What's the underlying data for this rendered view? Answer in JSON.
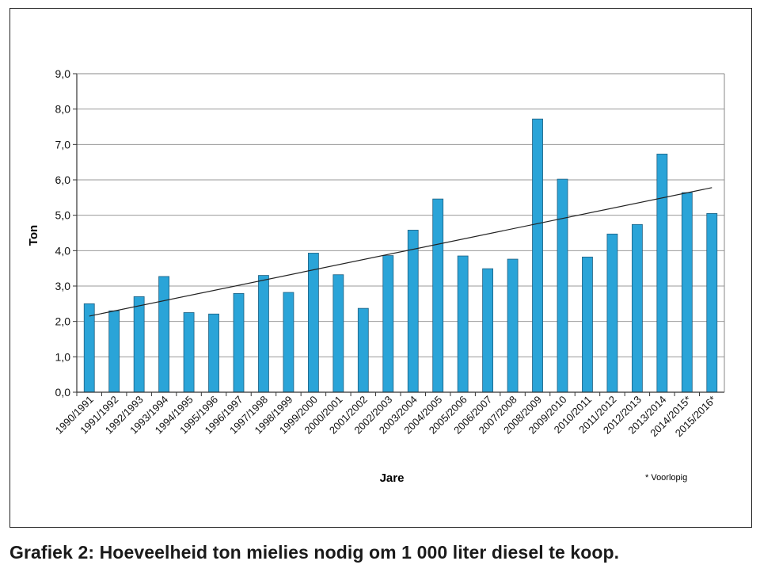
{
  "caption": "Grafiek 2: Hoeveelheid ton mielies nodig om 1 000 liter diesel te koop.",
  "chart_data": {
    "type": "bar",
    "title": "",
    "xlabel": "Jare",
    "ylabel": "Ton",
    "footnote": "* Voorlopig",
    "ylim": [
      0,
      9
    ],
    "yticks": [
      "0,0",
      "1,0",
      "2,0",
      "3,0",
      "4,0",
      "5,0",
      "6,0",
      "7,0",
      "8,0",
      "9,0"
    ],
    "grid": true,
    "legend": "none",
    "bar_color": "#2aa4d8",
    "trendline": {
      "type": "linear",
      "start": 2.15,
      "end": 5.78,
      "color": "#222222"
    },
    "categories": [
      "1990/1991",
      "1991/1992",
      "1992/1993",
      "1993/1994",
      "1994/1995",
      "1995/1996",
      "1996/1997",
      "1997/1998",
      "1998/1999",
      "1999/2000",
      "2000/2001",
      "2001/2002",
      "2002/2003",
      "2003/2004",
      "2004/2005",
      "2005/2006",
      "2006/2007",
      "2007/2008",
      "2008/2009",
      "2009/2010",
      "2010/2011",
      "2011/2012",
      "2012/2013",
      "2013/2014",
      "2014/2015*",
      "2015/2016*"
    ],
    "values": [
      2.5,
      2.3,
      2.7,
      3.27,
      2.25,
      2.21,
      2.79,
      3.3,
      2.82,
      3.93,
      3.32,
      2.37,
      3.86,
      4.58,
      5.46,
      3.85,
      3.49,
      3.76,
      7.72,
      6.02,
      3.82,
      4.47,
      4.74,
      6.73,
      5.64,
      5.05
    ]
  }
}
